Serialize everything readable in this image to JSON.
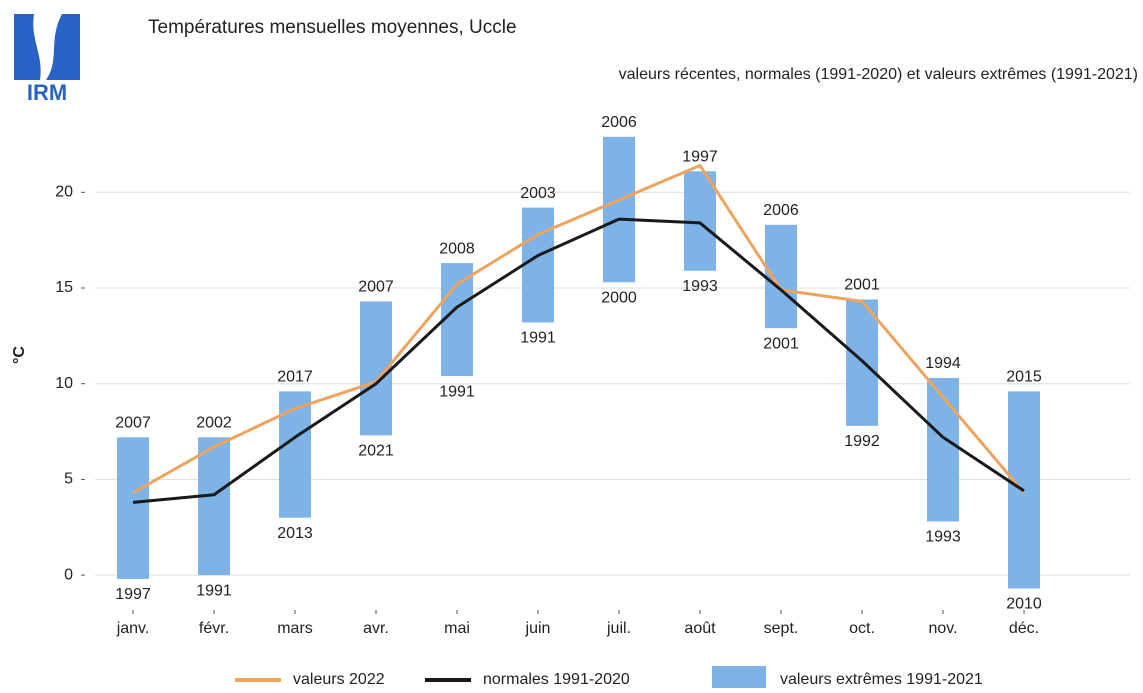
{
  "logo": "IRM",
  "chart_data": {
    "type": "bar",
    "title": "Températures mensuelles moyennes, Uccle",
    "subtitle": "valeurs récentes, normales (1991-2020) et valeurs extrêmes (1991-2021)",
    "y_label": "°C",
    "categories": [
      "janv.",
      "févr.",
      "mars",
      "avr.",
      "mai",
      "juin",
      "juil.",
      "août",
      "sept.",
      "oct.",
      "nov.",
      "déc."
    ],
    "ylim": [
      -1.3,
      24.3
    ],
    "yticks": [
      0,
      5,
      10,
      15,
      20
    ],
    "grid": true,
    "extremes": {
      "name": "valeurs extrêmes 1991-2021",
      "color": "#7eb3e8",
      "max": [
        7.2,
        7.2,
        9.6,
        14.3,
        16.3,
        19.2,
        22.9,
        21.1,
        18.3,
        14.4,
        10.3,
        9.6
      ],
      "min": [
        -0.2,
        0.0,
        3.0,
        7.3,
        10.4,
        13.2,
        15.3,
        15.9,
        12.9,
        7.8,
        2.8,
        -0.7
      ],
      "max_years": [
        "2007",
        "2002",
        "2017",
        "2007",
        "2008",
        "2003",
        "2006",
        "1997",
        "2006",
        "2001",
        "1994",
        "2015"
      ],
      "min_years": [
        "1997",
        "1991",
        "2013",
        "2021",
        "1991",
        "1991",
        "2000",
        "1993",
        "2001",
        "1992",
        "1993",
        "2010"
      ]
    },
    "series": [
      {
        "name": "valeurs 2022",
        "color": "#eea35e",
        "values": [
          4.3,
          6.7,
          8.7,
          10.1,
          15.2,
          17.8,
          19.6,
          21.4,
          14.9,
          14.3,
          9.3,
          4.3
        ]
      },
      {
        "name": "normales 1991-2020",
        "color": "#1a1a1a",
        "values": [
          3.8,
          4.2,
          7.2,
          10.0,
          14.0,
          16.7,
          18.6,
          18.4,
          14.9,
          11.2,
          7.2,
          4.4
        ]
      }
    ]
  }
}
